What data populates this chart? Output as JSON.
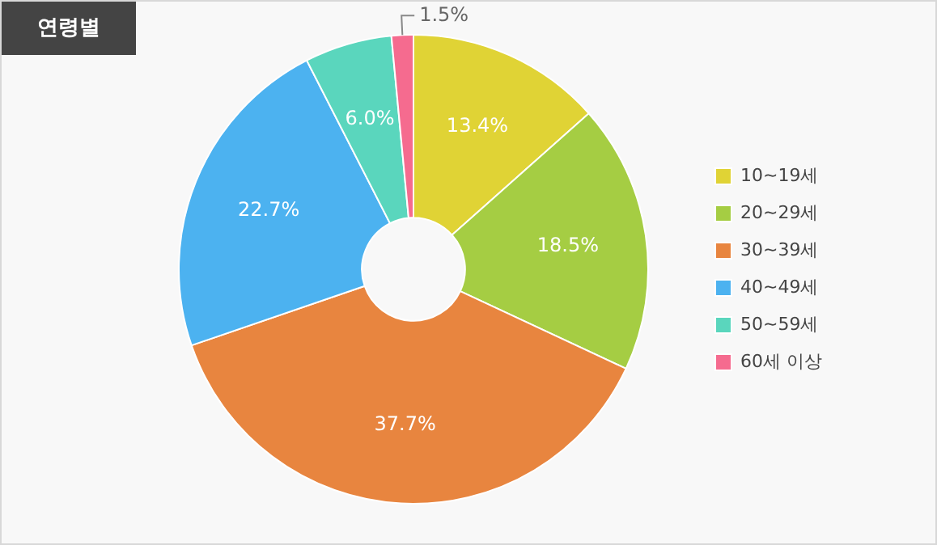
{
  "chart_data": {
    "type": "donut",
    "title": "연령별",
    "categories": [
      "10~19세",
      "20~29세",
      "30~39세",
      "40~49세",
      "50~59세",
      "60세 이상"
    ],
    "values": [
      13.4,
      18.5,
      37.7,
      22.7,
      6.0,
      1.5
    ],
    "value_labels": [
      "13.4%",
      "18.5%",
      "37.7%",
      "22.7%",
      "6.0%",
      "1.5%"
    ],
    "colors": [
      "#e0d335",
      "#a5cd43",
      "#e8853f",
      "#4cb2f0",
      "#5ad6bd",
      "#f56b8f"
    ],
    "legend": "right"
  }
}
